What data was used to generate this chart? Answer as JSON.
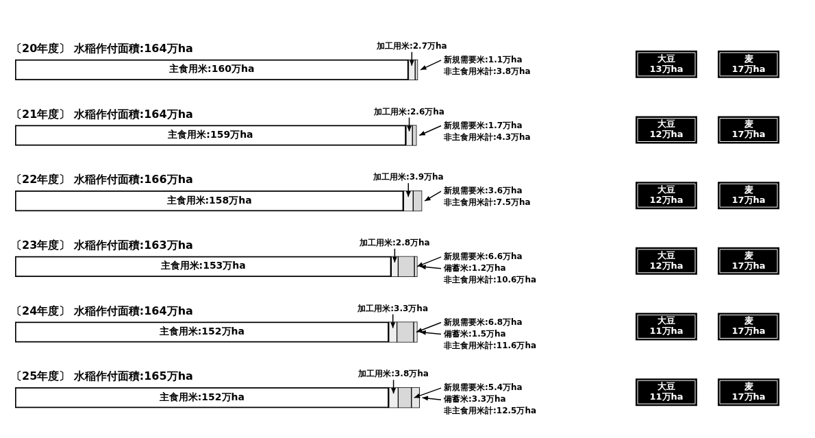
{
  "chart_data": {
    "type": "bar",
    "orientation": "horizontal",
    "stacked": true,
    "categories": [
      "〔20年度〕 水稲作付面積:164万ha",
      "〔21年度〕 水稲作付面積:164万ha",
      "〔22年度〕 水稲作付面積:166万ha",
      "〔23年度〕 水稲作付面積:163万ha",
      "〔24年度〕 水稲作付面積:164万ha",
      "〔25年度〕 水稲作付面積:165万ha"
    ],
    "xlim": [
      0,
      166
    ],
    "series": [
      {
        "color": "#ffffff",
        "values": [
          160,
          159,
          158,
          153,
          152,
          152
        ],
        "value_labels": [
          "主食用米:160万ha",
          "主食用米:159万ha",
          "主食用米:158万ha",
          "主食用米:153万ha",
          "主食用米:152万ha",
          "主食用米:152万ha"
        ]
      },
      {
        "color": "#eeeeee",
        "values": [
          2.7,
          2.6,
          3.9,
          2.8,
          3.3,
          3.8
        ],
        "value_labels": [
          "加工用米:2.7万ha",
          "加工用米:2.6万ha",
          "加工用米:3.9万ha",
          "加工用米:2.8万ha",
          "加工用米:3.3万ha",
          "加工用米:3.8万ha"
        ]
      },
      {
        "color": "#d8d8d8",
        "values": [
          1.1,
          1.7,
          3.6,
          6.6,
          6.8,
          5.4
        ],
        "value_labels": [
          "新規需要米:1.1万ha",
          "新規需要米:1.7万ha",
          "新規需要米:3.6万ha",
          "新規需要米:6.6万ha",
          "新規需要米:6.8万ha",
          "新規需要米:5.4万ha"
        ]
      },
      {
        "color": "#e6e6e6",
        "values": [
          null,
          null,
          null,
          1.2,
          1.5,
          3.3
        ],
        "value_labels": [
          null,
          null,
          null,
          "備蓄米:1.2万ha",
          "備蓄米:1.5万ha",
          "備蓄米:3.3万ha"
        ]
      }
    ],
    "annotations": [
      "非主食用米計:3.8万ha",
      "大豆\n13万ha",
      "麦\n17万ha",
      "非主食用米計:4.3万ha",
      "大豆\n12万ha",
      "麦\n17万ha",
      "非主食用米計:7.5万ha",
      "大豆\n12万ha",
      "麦\n17万ha",
      "非主食用米計:10.6万ha",
      "大豆\n12万ha",
      "麦\n17万ha",
      "非主食用米計:11.6万ha",
      "大豆\n11万ha",
      "麦\n17万ha",
      "非主食用米計:12.5万ha",
      "大豆\n11万ha",
      "麦\n17万ha"
    ]
  }
}
